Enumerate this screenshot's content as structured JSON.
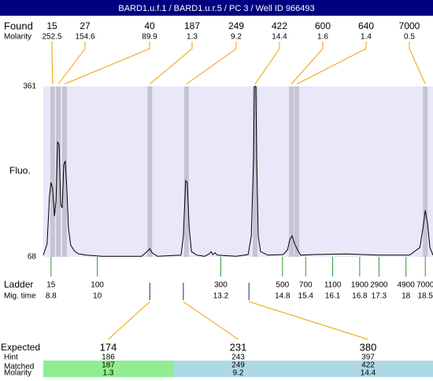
{
  "chart_data": {
    "type": "line",
    "title": "BARD1.u.f.1 / BARD1.u.r.5 / PC 3 / Well ID 966493",
    "y_label": "Fluo.",
    "color": "#000000",
    "plot_background": "#e8e8f8",
    "band_color": "#c4c4d4",
    "xlim": [
      8.6,
      18.7
    ],
    "ylim": [
      68,
      361
    ],
    "yticks": [
      68,
      361
    ],
    "x": [
      8.6,
      8.7,
      8.76,
      8.8,
      8.84,
      8.89,
      8.93,
      8.97,
      9.01,
      9.05,
      9.09,
      9.13,
      9.17,
      9.21,
      9.25,
      9.31,
      9.42,
      9.52,
      9.72,
      10.13,
      11.15,
      11.29,
      11.36,
      11.42,
      11.56,
      12.17,
      12.23,
      12.29,
      12.33,
      12.38,
      12.44,
      12.58,
      12.78,
      12.89,
      12.95,
      12.99,
      13.05,
      13.11,
      13.6,
      13.91,
      13.99,
      14.05,
      14.07,
      14.11,
      14.13,
      14.17,
      14.23,
      14.42,
      14.82,
      14.93,
      14.99,
      15.05,
      15.11,
      15.19,
      15.27,
      15.64,
      16.46,
      17.27,
      18.09,
      18.36,
      18.44,
      18.5,
      18.56,
      18.62,
      18.7
    ],
    "values": [
      71,
      91,
      172,
      196,
      185,
      138,
      165,
      266,
      260,
      158,
      152,
      226,
      233,
      185,
      118,
      88,
      77,
      73,
      71,
      69,
      69,
      77,
      82,
      75,
      69,
      71,
      104,
      199,
      196,
      118,
      77,
      71,
      69,
      73,
      77,
      72,
      75,
      71,
      69,
      72,
      104,
      239,
      361,
      361,
      239,
      104,
      77,
      71,
      72,
      80,
      98,
      104,
      91,
      80,
      71,
      72,
      73,
      71,
      71,
      84,
      118,
      148,
      125,
      84,
      71
    ],
    "found": {
      "label": "Found",
      "sublabel": "Molarity",
      "line_color": "#f0a000",
      "peaks": [
        {
          "size": 15,
          "molarity": 252.5,
          "x": 8.84
        },
        {
          "size": 27,
          "molarity": 154.6,
          "x": 8.99
        },
        {
          "size": 40,
          "molarity": 89.9,
          "x": 9.15
        },
        {
          "size": 187,
          "molarity": 1.3,
          "x": 11.36
        },
        {
          "size": 249,
          "molarity": 9.2,
          "x": 12.31
        },
        {
          "size": 422,
          "molarity": 14.4,
          "x": 14.09
        },
        {
          "size": 600,
          "molarity": 1.6,
          "x": 15.03
        },
        {
          "size": 640,
          "molarity": 1.4,
          "x": 15.17
        },
        {
          "size": 7000,
          "molarity": 0.5,
          "x": 18.5
        }
      ]
    },
    "ladder": {
      "label": "Ladder",
      "sublabel": "Mig. time",
      "tick_color": "#2a9a2a",
      "ticks": [
        {
          "size": 15,
          "x": 8.8
        },
        {
          "size": 100,
          "x": 10
        },
        {
          "size": 300,
          "x": 13.2
        },
        {
          "size": 500,
          "x": 14.8
        },
        {
          "size": 700,
          "x": 15.4
        },
        {
          "size": 1100,
          "x": 16.1
        },
        {
          "size": 1900,
          "x": 16.8
        },
        {
          "size": 2900,
          "x": 17.3
        },
        {
          "size": 4900,
          "x": 18
        },
        {
          "size": 7000,
          "x": 18.5
        }
      ]
    },
    "expected": {
      "labels": [
        "Expected",
        "Hint",
        "Matched",
        "Molarity"
      ],
      "marker_color": "#202080",
      "items": [
        {
          "expected": 174,
          "hint": 186,
          "matched": 187,
          "molarity": 1.3,
          "x": 11.36,
          "color": "#90ee90"
        },
        {
          "expected": 231,
          "hint": 243,
          "matched": 249,
          "molarity": 9.2,
          "x": 12.23,
          "color": "#add8e6"
        },
        {
          "expected": 380,
          "hint": 397,
          "matched": 422,
          "molarity": 14.4,
          "x": 13.93,
          "color": "#add8e6"
        }
      ]
    }
  }
}
